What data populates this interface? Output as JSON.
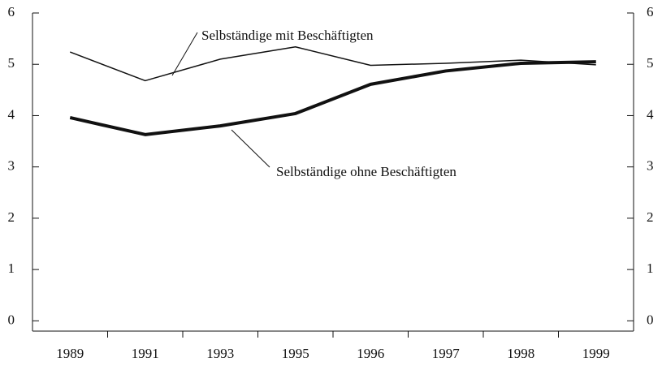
{
  "chart_data": {
    "type": "line",
    "categories": [
      "1989",
      "1991",
      "1993",
      "1995",
      "1996",
      "1997",
      "1998",
      "1999"
    ],
    "series": [
      {
        "name": "Selbständige mit Beschäftigten",
        "color": "#111111",
        "width": 1.5,
        "values": [
          5.24,
          4.68,
          5.1,
          5.34,
          4.98,
          5.02,
          5.08,
          4.99
        ]
      },
      {
        "name": "Selbständige ohne Beschäftigten",
        "color": "#111111",
        "width": 4,
        "values": [
          3.96,
          3.63,
          3.8,
          4.04,
          4.61,
          4.87,
          5.02,
          5.05
        ]
      }
    ],
    "ylim": [
      -0.2,
      6
    ],
    "yticks": [
      0,
      1,
      2,
      3,
      4,
      5,
      6
    ],
    "y2lim": [
      -0.2,
      6
    ],
    "y2ticks": [
      0,
      1,
      2,
      3,
      4,
      5,
      6
    ]
  }
}
